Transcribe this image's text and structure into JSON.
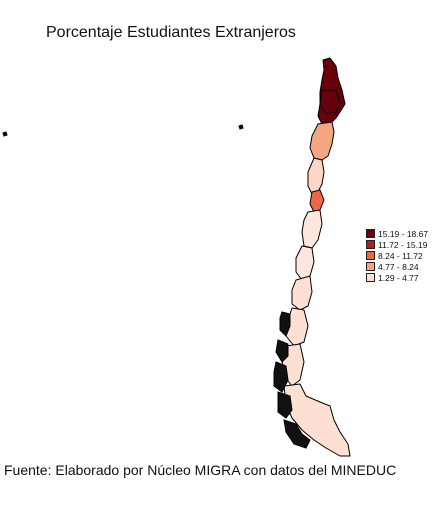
{
  "map": {
    "title": "Porcentaje Estudiantes Extranjeros",
    "source": "Fuente: Elaborado por Núcleo MIGRA con datos del MINEDUC",
    "legend": [
      {
        "label": "15.19 - 18.67",
        "color": "#67000d"
      },
      {
        "label": "11.72 - 15.19",
        "color": "#b71c1c"
      },
      {
        "label": "8.24 - 11.72",
        "color": "#ef6548"
      },
      {
        "label": "4.77 - 8.24",
        "color": "#fc9e80"
      },
      {
        "label": "1.29 - 4.77",
        "color": "#fde0d2"
      }
    ],
    "colors": {
      "background": "#ffffff",
      "border": "#000000",
      "region_top": "#67000d",
      "region_north": "#f4a582",
      "region_upper_mid": "#fcd7c6",
      "region_mid": "#fde6dc",
      "region_south": "#fde0d2",
      "islands": "#111111"
    }
  }
}
